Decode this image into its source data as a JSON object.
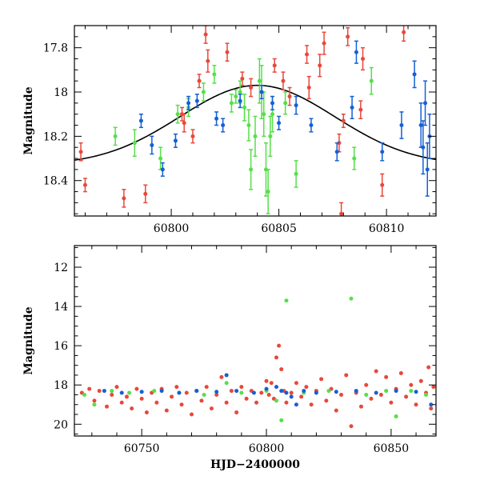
{
  "colors": {
    "red": "#e8483b",
    "green": "#55e048",
    "blue": "#1560d4",
    "model": "#000000"
  },
  "chart_data": [
    {
      "id": "top",
      "type": "scatter",
      "xlabel": "",
      "ylabel": "Magnitude",
      "xlim": [
        60795.5,
        60812.3
      ],
      "ylim": [
        17.7,
        18.56
      ],
      "y_inverted": true,
      "xticks": [
        60800,
        60805,
        60810
      ],
      "xtick_labels": [
        "60800",
        "60805",
        "60810"
      ],
      "yticks": [
        17.8,
        18.0,
        18.2,
        18.4
      ],
      "ytick_labels": [
        "17.8",
        "18",
        "18.2",
        "18.4"
      ],
      "model_curve": {
        "type": "gaussian",
        "baseline": 18.33,
        "amplitude": 0.36,
        "center": 60804.0,
        "sigma": 3.6
      },
      "series": [
        {
          "color": "red",
          "points": [
            [
              60795.8,
              18.27,
              0.04
            ],
            [
              60796.0,
              18.42,
              0.03
            ],
            [
              60797.8,
              18.48,
              0.04
            ],
            [
              60798.8,
              18.46,
              0.04
            ],
            [
              60800.5,
              18.1,
              0.03
            ],
            [
              60800.6,
              18.14,
              0.04
            ],
            [
              60801.0,
              18.2,
              0.03
            ],
            [
              60801.3,
              17.95,
              0.03
            ],
            [
              60801.6,
              17.74,
              0.04
            ],
            [
              60801.7,
              17.86,
              0.05
            ],
            [
              60802.6,
              17.82,
              0.04
            ],
            [
              60803.3,
              17.94,
              0.03
            ],
            [
              60803.7,
              17.98,
              0.04
            ],
            [
              60804.8,
              17.88,
              0.03
            ],
            [
              60805.2,
              17.95,
              0.04
            ],
            [
              60805.5,
              18.02,
              0.04
            ],
            [
              60806.3,
              17.83,
              0.04
            ],
            [
              60806.4,
              17.98,
              0.05
            ],
            [
              60806.9,
              17.88,
              0.05
            ],
            [
              60807.1,
              17.78,
              0.05
            ],
            [
              60807.8,
              18.23,
              0.04
            ],
            [
              60807.9,
              18.55,
              0.05
            ],
            [
              60808.0,
              18.13,
              0.03
            ],
            [
              60808.2,
              17.75,
              0.04
            ],
            [
              60808.8,
              18.08,
              0.04
            ],
            [
              60808.9,
              17.85,
              0.05
            ],
            [
              60809.8,
              18.42,
              0.05
            ],
            [
              60810.8,
              17.73,
              0.04
            ]
          ]
        },
        {
          "color": "green",
          "points": [
            [
              60797.4,
              18.2,
              0.04
            ],
            [
              60798.3,
              18.23,
              0.06
            ],
            [
              60799.5,
              18.3,
              0.05
            ],
            [
              60800.3,
              18.1,
              0.04
            ],
            [
              60800.8,
              18.07,
              0.04
            ],
            [
              60801.5,
              18.0,
              0.04
            ],
            [
              60802.0,
              17.92,
              0.04
            ],
            [
              60802.8,
              18.05,
              0.04
            ],
            [
              60803.0,
              18.02,
              0.03
            ],
            [
              60803.2,
              18.0,
              0.05
            ],
            [
              60803.4,
              18.07,
              0.06
            ],
            [
              60803.6,
              18.15,
              0.07
            ],
            [
              60803.7,
              18.35,
              0.09
            ],
            [
              60803.9,
              18.2,
              0.09
            ],
            [
              60804.1,
              17.95,
              0.1
            ],
            [
              60804.2,
              18.0,
              0.12
            ],
            [
              60804.3,
              18.1,
              0.1
            ],
            [
              60804.4,
              18.35,
              0.12
            ],
            [
              60804.5,
              18.45,
              0.1
            ],
            [
              60804.6,
              18.2,
              0.09
            ],
            [
              60804.7,
              18.1,
              0.08
            ],
            [
              60805.3,
              18.05,
              0.05
            ],
            [
              60805.8,
              18.37,
              0.06
            ],
            [
              60808.5,
              18.3,
              0.05
            ],
            [
              60809.3,
              17.95,
              0.06
            ]
          ]
        },
        {
          "color": "blue",
          "points": [
            [
              60798.6,
              18.13,
              0.03
            ],
            [
              60799.1,
              18.24,
              0.04
            ],
            [
              60799.6,
              18.35,
              0.03
            ],
            [
              60800.2,
              18.22,
              0.03
            ],
            [
              60800.8,
              18.05,
              0.03
            ],
            [
              60801.2,
              18.04,
              0.03
            ],
            [
              60802.1,
              18.12,
              0.03
            ],
            [
              60802.4,
              18.15,
              0.03
            ],
            [
              60803.2,
              18.04,
              0.03
            ],
            [
              60804.2,
              18.0,
              0.03
            ],
            [
              60804.7,
              18.05,
              0.03
            ],
            [
              60805.0,
              18.14,
              0.03
            ],
            [
              60805.8,
              18.06,
              0.04
            ],
            [
              60806.5,
              18.15,
              0.03
            ],
            [
              60807.7,
              18.27,
              0.04
            ],
            [
              60808.4,
              18.07,
              0.05
            ],
            [
              60808.6,
              17.82,
              0.05
            ],
            [
              60809.8,
              18.27,
              0.04
            ],
            [
              60810.7,
              18.15,
              0.06
            ],
            [
              60811.3,
              17.92,
              0.06
            ],
            [
              60811.6,
              18.15,
              0.1
            ],
            [
              60811.7,
              18.25,
              0.12
            ],
            [
              60811.8,
              18.05,
              0.1
            ],
            [
              60811.9,
              18.35,
              0.12
            ],
            [
              60812.0,
              18.2,
              0.1
            ]
          ]
        }
      ]
    },
    {
      "id": "bottom",
      "type": "scatter",
      "xlabel": "HJD−2400000",
      "ylabel": "Magnitude",
      "xlim": [
        60723,
        60868
      ],
      "ylim": [
        10.9,
        20.6
      ],
      "y_inverted": true,
      "xticks": [
        60750,
        60800,
        60850
      ],
      "xtick_labels": [
        "60750",
        "60800",
        "60850"
      ],
      "yticks": [
        12,
        14,
        16,
        18,
        20
      ],
      "ytick_labels": [
        "12",
        "14",
        "16",
        "18",
        "20"
      ],
      "series": [
        {
          "color": "red",
          "points": [
            [
              60726,
              18.4
            ],
            [
              60729,
              18.2
            ],
            [
              60731,
              18.8
            ],
            [
              60733,
              18.3
            ],
            [
              60736,
              19.1
            ],
            [
              60738,
              18.5
            ],
            [
              60740,
              18.1
            ],
            [
              60742,
              18.9
            ],
            [
              60744,
              18.6
            ],
            [
              60746,
              19.2
            ],
            [
              60748,
              18.2
            ],
            [
              60750,
              18.7
            ],
            [
              60752,
              19.4
            ],
            [
              60754,
              18.4
            ],
            [
              60756,
              18.9
            ],
            [
              60758,
              18.2
            ],
            [
              60760,
              19.3
            ],
            [
              60762,
              18.6
            ],
            [
              60764,
              18.1
            ],
            [
              60766,
              19.0
            ],
            [
              60768,
              18.4
            ],
            [
              60770,
              19.5
            ],
            [
              60772,
              18.3
            ],
            [
              60774,
              18.8
            ],
            [
              60776,
              18.1
            ],
            [
              60778,
              19.2
            ],
            [
              60780,
              18.5
            ],
            [
              60782,
              17.6
            ],
            [
              60784,
              18.9
            ],
            [
              60786,
              18.3
            ],
            [
              60788,
              19.4
            ],
            [
              60790,
              18.1
            ],
            [
              60792,
              18.7
            ],
            [
              60794,
              18.3
            ],
            [
              60796,
              18.9
            ],
            [
              60798,
              18.4
            ],
            [
              60800,
              17.8
            ],
            [
              60801,
              18.5
            ],
            [
              60802,
              17.9
            ],
            [
              60803,
              18.7
            ],
            [
              60804,
              16.6
            ],
            [
              60805,
              16.0
            ],
            [
              60806,
              17.2
            ],
            [
              60807,
              18.3
            ],
            [
              60808,
              18.9
            ],
            [
              60810,
              18.4
            ],
            [
              60812,
              17.9
            ],
            [
              60814,
              18.6
            ],
            [
              60816,
              18.1
            ],
            [
              60818,
              19.0
            ],
            [
              60820,
              18.3
            ],
            [
              60822,
              17.7
            ],
            [
              60824,
              18.8
            ],
            [
              60826,
              18.2
            ],
            [
              60828,
              19.3
            ],
            [
              60830,
              18.5
            ],
            [
              60832,
              17.5
            ],
            [
              60834,
              20.1
            ],
            [
              60836,
              18.4
            ],
            [
              60838,
              19.1
            ],
            [
              60840,
              18.0
            ],
            [
              60842,
              18.7
            ],
            [
              60844,
              17.3
            ],
            [
              60846,
              18.5
            ],
            [
              60848,
              17.6
            ],
            [
              60850,
              18.9
            ],
            [
              60852,
              18.2
            ],
            [
              60854,
              17.4
            ],
            [
              60856,
              18.6
            ],
            [
              60858,
              18.0
            ],
            [
              60860,
              19.0
            ],
            [
              60862,
              17.8
            ],
            [
              60864,
              18.4
            ],
            [
              60865,
              17.1
            ],
            [
              60866,
              19.2
            ],
            [
              60867,
              18.1
            ]
          ]
        },
        {
          "color": "green",
          "points": [
            [
              60727,
              18.5
            ],
            [
              60731,
              19.0
            ],
            [
              60738,
              18.3
            ],
            [
              60745,
              18.4
            ],
            [
              60755,
              18.3
            ],
            [
              60765,
              18.4
            ],
            [
              60775,
              18.5
            ],
            [
              60784,
              17.9
            ],
            [
              60790,
              18.4
            ],
            [
              60800,
              18.3
            ],
            [
              60804,
              18.8
            ],
            [
              60806,
              19.8
            ],
            [
              60808,
              13.7
            ],
            [
              60815,
              18.4
            ],
            [
              60825,
              18.3
            ],
            [
              60834,
              13.6
            ],
            [
              60840,
              18.5
            ],
            [
              60848,
              18.3
            ],
            [
              60852,
              19.6
            ],
            [
              60858,
              18.3
            ],
            [
              60864,
              18.5
            ]
          ]
        },
        {
          "color": "blue",
          "points": [
            [
              60735,
              18.3
            ],
            [
              60742,
              18.4
            ],
            [
              60750,
              18.35
            ],
            [
              60758,
              18.3
            ],
            [
              60765,
              18.4
            ],
            [
              60772,
              18.3
            ],
            [
              60780,
              18.35
            ],
            [
              60784,
              17.5
            ],
            [
              60788,
              18.3
            ],
            [
              60795,
              18.4
            ],
            [
              60800,
              18.2
            ],
            [
              60804,
              18.1
            ],
            [
              60806,
              18.3
            ],
            [
              60808,
              18.4
            ],
            [
              60810,
              18.6
            ],
            [
              60812,
              19.0
            ],
            [
              60815,
              18.3
            ],
            [
              60820,
              18.4
            ],
            [
              60828,
              18.35
            ],
            [
              60836,
              18.3
            ],
            [
              60844,
              18.4
            ],
            [
              60852,
              18.3
            ],
            [
              60860,
              18.35
            ],
            [
              60866,
              19.0
            ]
          ]
        }
      ]
    }
  ]
}
